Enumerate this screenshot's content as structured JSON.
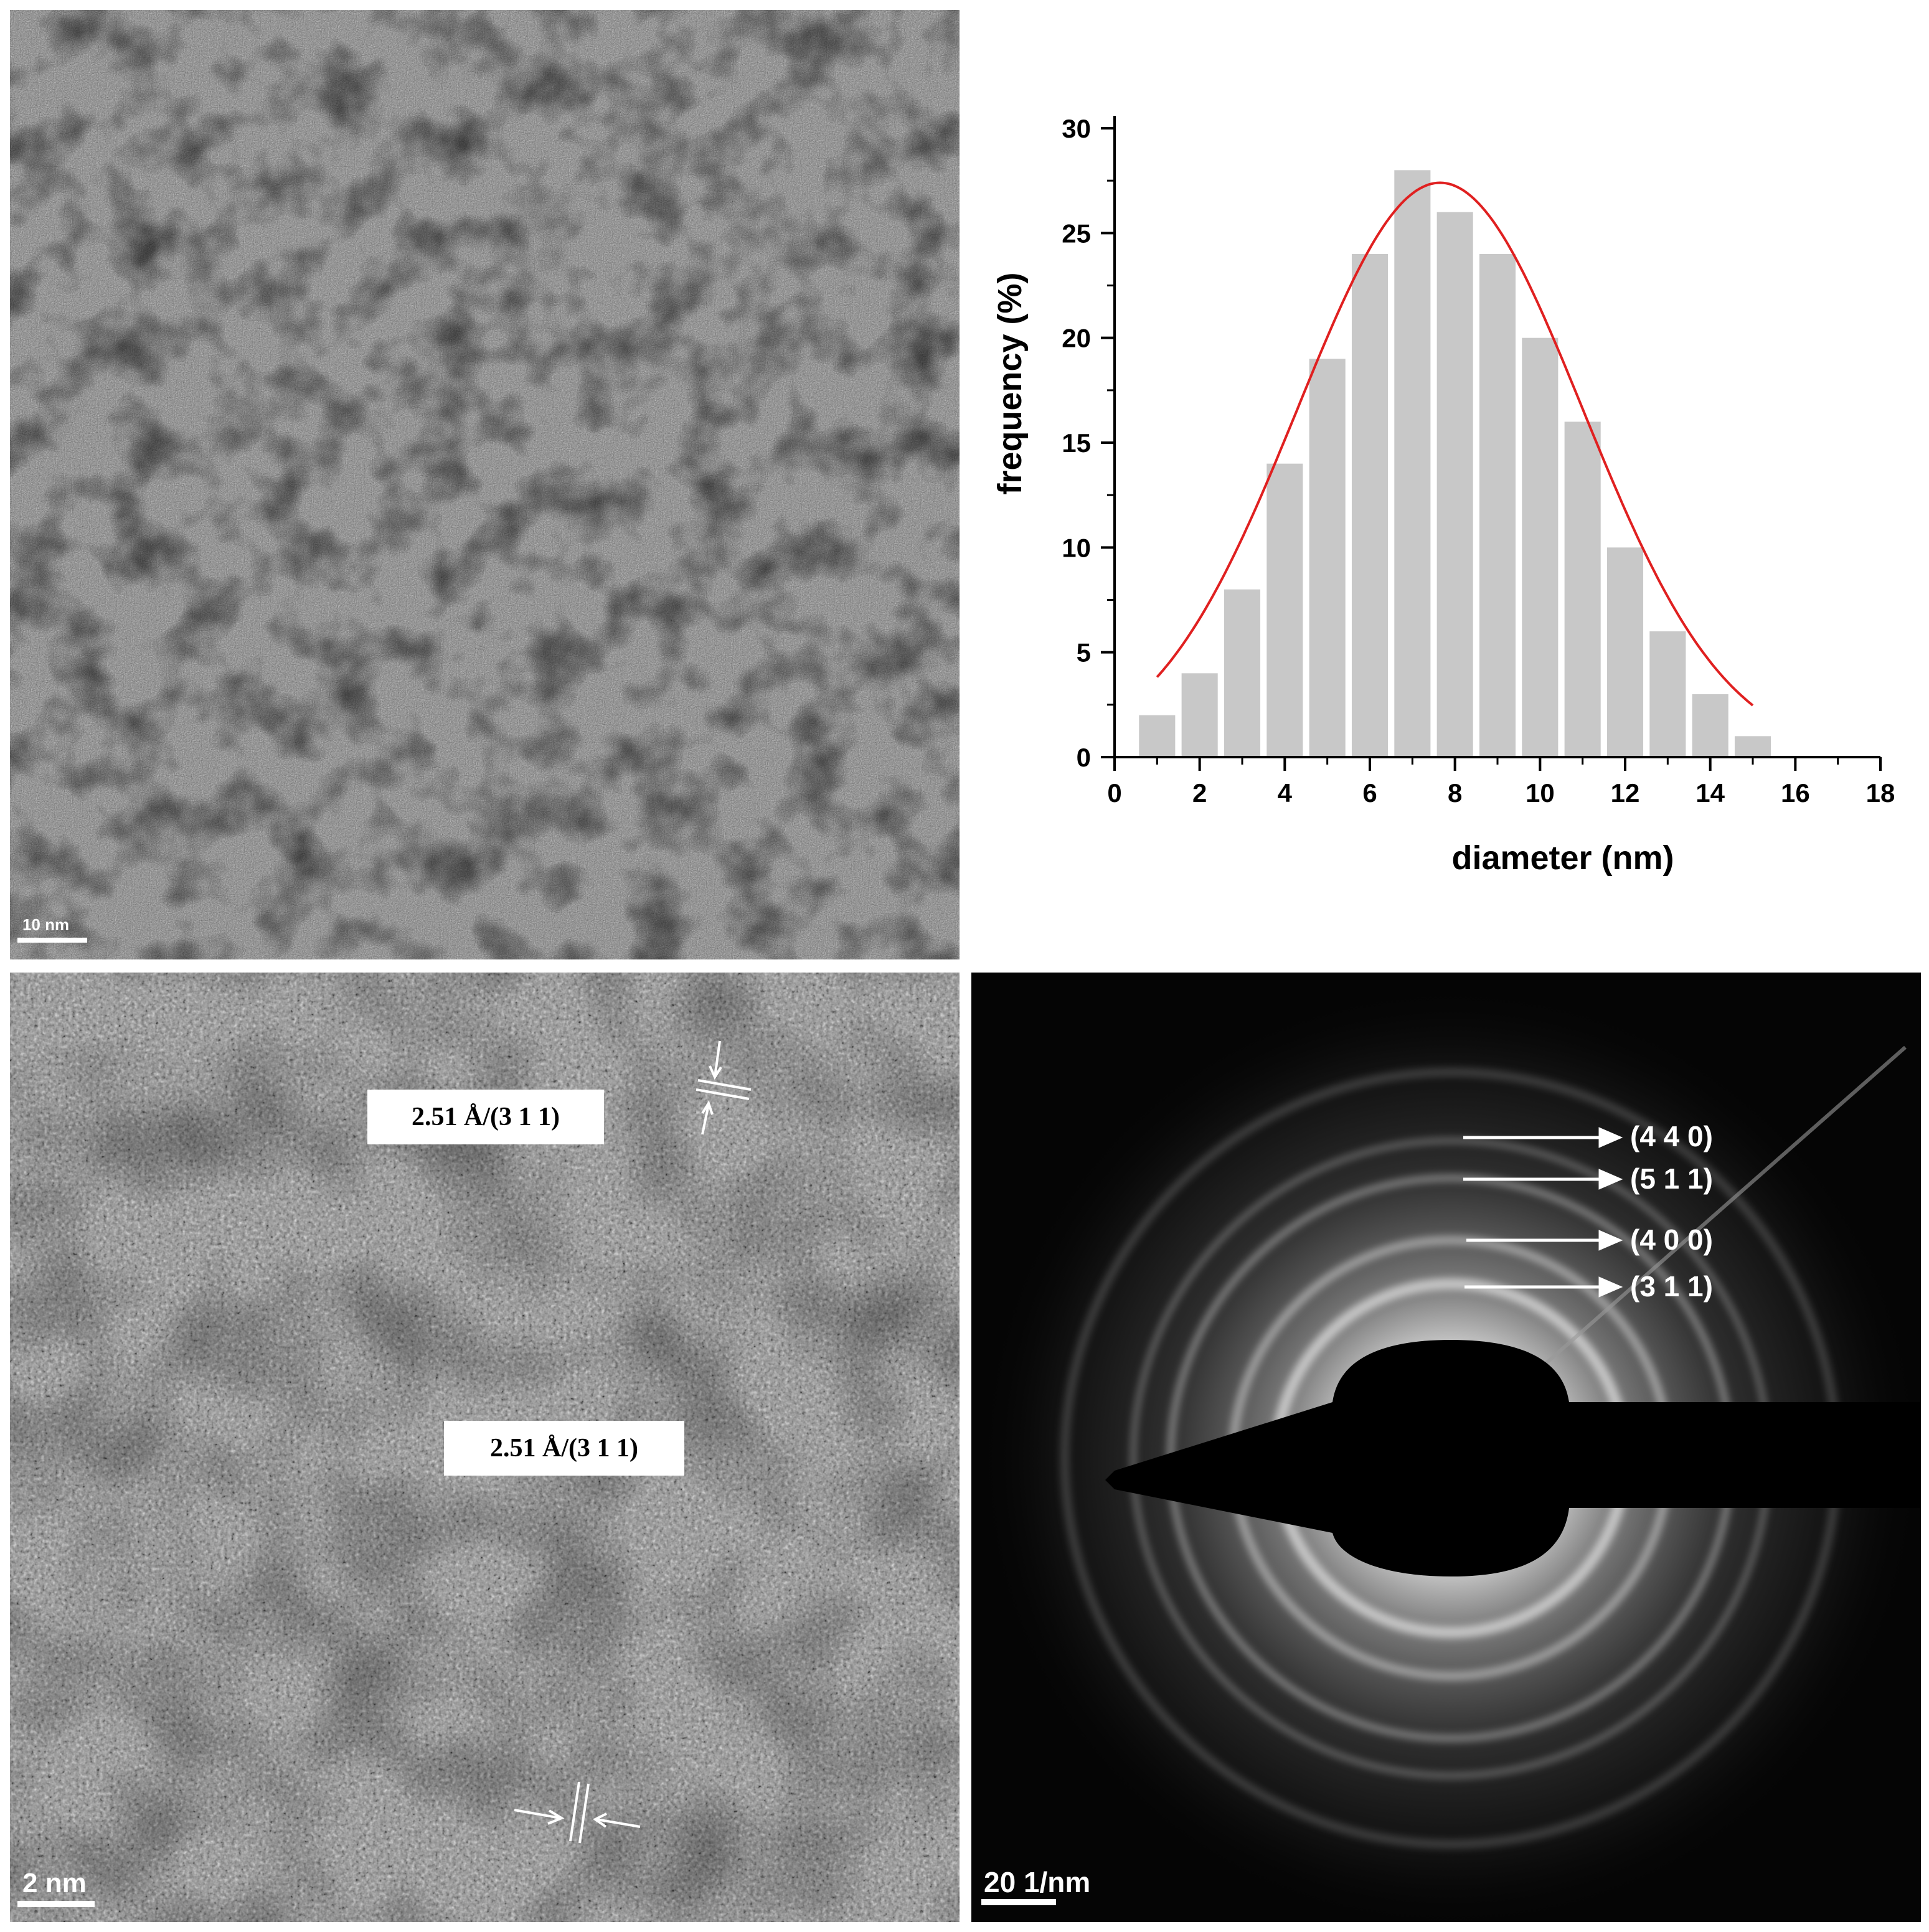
{
  "panels": {
    "tem": {
      "scale_label": "10 nm"
    },
    "hrtem": {
      "scale_label": "2 nm",
      "annotations": [
        "2.51 Å/(3 1 1)",
        "2.51 Å/(3 1 1)"
      ]
    },
    "saed": {
      "scale_label": "20 1/nm",
      "rings": [
        "(4 4 0)",
        "(5 1 1)",
        "(4 0 0)",
        "(3 1 1)"
      ]
    }
  },
  "chart_data": {
    "type": "bar",
    "title": "",
    "xlabel": "diameter (nm)",
    "ylabel": "frequency (%)",
    "xlim": [
      0,
      18
    ],
    "ylim": [
      0,
      30
    ],
    "xticks": [
      0,
      2,
      4,
      6,
      8,
      10,
      12,
      14,
      16,
      18
    ],
    "yticks": [
      0,
      5,
      10,
      15,
      20,
      25,
      30
    ],
    "bar_width": 0.85,
    "x": [
      1,
      2,
      3,
      4,
      5,
      6,
      7,
      8,
      9,
      10,
      11,
      12,
      13,
      14,
      15
    ],
    "values": [
      2,
      4,
      8,
      14,
      19,
      24,
      28,
      26,
      24,
      20,
      16,
      10,
      6,
      3,
      1
    ],
    "bar_color": "#c8c8c8",
    "fit": {
      "type": "gaussian",
      "color": "#e02020",
      "amplitude": 27.4,
      "center": 7.65,
      "sigma": 3.35,
      "x_range": [
        1,
        15
      ]
    }
  }
}
